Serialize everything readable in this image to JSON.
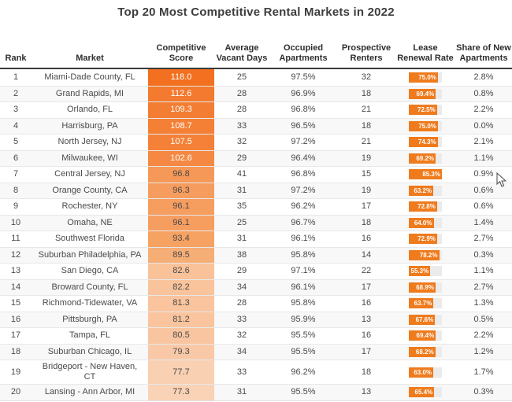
{
  "title": "Top 20 Most Competitive Rental Markets in 2022",
  "colors": {
    "accent_orange": "#ef7b1d",
    "bar_track": "#ebebeb",
    "header_border": "#3a3a3a",
    "alt_row_bg": "#f8f8f8"
  },
  "chart_data": {
    "type": "table",
    "title": "Top 20 Most Competitive Rental Markets in 2022",
    "columns": [
      "Rank",
      "Market",
      "Competitive Score",
      "Average Vacant Days",
      "Occupied Apartments",
      "Prospective Renters",
      "Lease Renewal Rate",
      "Share of New Apartments"
    ],
    "lease_renewal_bar": {
      "max_value": 85.3,
      "fill_color": "#ef7b1d",
      "track_color": "#ebebeb"
    },
    "score_color_scale": {
      "high": "#f2701f",
      "low": "#fad2b5"
    },
    "rows": [
      {
        "rank": "1",
        "market": "Miami-Dade County, FL",
        "score": "118.0",
        "score_bg": "#f2701f",
        "score_fg": "#ffffff",
        "avg_vacant_days": "25",
        "occupied": "97.5%",
        "prospective": "32",
        "lease_renewal": "75.0%",
        "lease_value": 75.0,
        "share_new": "2.8%"
      },
      {
        "rank": "2",
        "market": "Grand Rapids, MI",
        "score": "112.6",
        "score_bg": "#f37a2e",
        "score_fg": "#ffffff",
        "avg_vacant_days": "28",
        "occupied": "96.9%",
        "prospective": "18",
        "lease_renewal": "69.4%",
        "lease_value": 69.4,
        "share_new": "0.8%"
      },
      {
        "rank": "3",
        "market": "Orlando, FL",
        "score": "109.3",
        "score_bg": "#f37e33",
        "score_fg": "#ffffff",
        "avg_vacant_days": "28",
        "occupied": "96.8%",
        "prospective": "21",
        "lease_renewal": "72.5%",
        "lease_value": 72.5,
        "share_new": "2.2%"
      },
      {
        "rank": "4",
        "market": "Harrisburg, PA",
        "score": "108.7",
        "score_bg": "#f48035",
        "score_fg": "#ffffff",
        "avg_vacant_days": "33",
        "occupied": "96.5%",
        "prospective": "18",
        "lease_renewal": "75.0%",
        "lease_value": 75.0,
        "share_new": "0.0%"
      },
      {
        "rank": "5",
        "market": "North Jersey, NJ",
        "score": "107.5",
        "score_bg": "#f48137",
        "score_fg": "#ffffff",
        "avg_vacant_days": "32",
        "occupied": "97.2%",
        "prospective": "21",
        "lease_renewal": "74.3%",
        "lease_value": 74.3,
        "share_new": "2.1%"
      },
      {
        "rank": "6",
        "market": "Milwaukee, WI",
        "score": "102.6",
        "score_bg": "#f58842",
        "score_fg": "#ffffff",
        "avg_vacant_days": "29",
        "occupied": "96.4%",
        "prospective": "19",
        "lease_renewal": "69.2%",
        "lease_value": 69.2,
        "share_new": "1.1%"
      },
      {
        "rank": "7",
        "market": "Central Jersey, NJ",
        "score": "96.8",
        "score_bg": "#f69857",
        "score_fg": "#4a4a4a",
        "avg_vacant_days": "41",
        "occupied": "96.8%",
        "prospective": "15",
        "lease_renewal": "85.3%",
        "lease_value": 85.3,
        "share_new": "0.9%"
      },
      {
        "rank": "8",
        "market": "Orange County, CA",
        "score": "96.3",
        "score_bg": "#f69c5e",
        "score_fg": "#4a4a4a",
        "avg_vacant_days": "31",
        "occupied": "97.2%",
        "prospective": "19",
        "lease_renewal": "63.2%",
        "lease_value": 63.2,
        "share_new": "0.6%"
      },
      {
        "rank": "9",
        "market": "Rochester, NY",
        "score": "96.1",
        "score_bg": "#f69d60",
        "score_fg": "#4a4a4a",
        "avg_vacant_days": "35",
        "occupied": "96.2%",
        "prospective": "17",
        "lease_renewal": "72.8%",
        "lease_value": 72.8,
        "share_new": "0.6%"
      },
      {
        "rank": "10",
        "market": "Omaha, NE",
        "score": "96.1",
        "score_bg": "#f69d60",
        "score_fg": "#4a4a4a",
        "avg_vacant_days": "25",
        "occupied": "96.7%",
        "prospective": "18",
        "lease_renewal": "64.0%",
        "lease_value": 64.0,
        "share_new": "1.4%"
      },
      {
        "rank": "11",
        "market": "Southwest Florida",
        "score": "93.4",
        "score_bg": "#f6a263",
        "score_fg": "#4a4a4a",
        "avg_vacant_days": "31",
        "occupied": "96.1%",
        "prospective": "16",
        "lease_renewal": "72.9%",
        "lease_value": 72.9,
        "share_new": "2.7%"
      },
      {
        "rank": "12",
        "market": "Suburban Philadelphia, PA",
        "score": "89.5",
        "score_bg": "#f6ae77",
        "score_fg": "#4a4a4a",
        "avg_vacant_days": "38",
        "occupied": "95.8%",
        "prospective": "14",
        "lease_renewal": "78.2%",
        "lease_value": 78.2,
        "share_new": "0.3%"
      },
      {
        "rank": "13",
        "market": "San Diego, CA",
        "score": "82.6",
        "score_bg": "#f9c299",
        "score_fg": "#4a4a4a",
        "avg_vacant_days": "29",
        "occupied": "97.1%",
        "prospective": "22",
        "lease_renewal": "55.3%",
        "lease_value": 55.3,
        "share_new": "1.1%"
      },
      {
        "rank": "14",
        "market": "Broward County, FL",
        "score": "82.2",
        "score_bg": "#f9c39b",
        "score_fg": "#4a4a4a",
        "avg_vacant_days": "34",
        "occupied": "96.1%",
        "prospective": "17",
        "lease_renewal": "68.9%",
        "lease_value": 68.9,
        "share_new": "2.7%"
      },
      {
        "rank": "15",
        "market": "Richmond-Tidewater, VA",
        "score": "81.3",
        "score_bg": "#f9c49e",
        "score_fg": "#4a4a4a",
        "avg_vacant_days": "28",
        "occupied": "95.8%",
        "prospective": "16",
        "lease_renewal": "63.7%",
        "lease_value": 63.7,
        "share_new": "1.3%"
      },
      {
        "rank": "16",
        "market": "Pittsburgh, PA",
        "score": "81.2",
        "score_bg": "#f9c49e",
        "score_fg": "#4a4a4a",
        "avg_vacant_days": "33",
        "occupied": "95.9%",
        "prospective": "13",
        "lease_renewal": "67.6%",
        "lease_value": 67.6,
        "share_new": "0.5%"
      },
      {
        "rank": "17",
        "market": "Tampa, FL",
        "score": "80.5",
        "score_bg": "#f9c5a0",
        "score_fg": "#4a4a4a",
        "avg_vacant_days": "32",
        "occupied": "95.5%",
        "prospective": "16",
        "lease_renewal": "69.4%",
        "lease_value": 69.4,
        "share_new": "2.2%"
      },
      {
        "rank": "18",
        "market": "Suburban Chicago, IL",
        "score": "79.3",
        "score_bg": "#f9c9a7",
        "score_fg": "#4a4a4a",
        "avg_vacant_days": "34",
        "occupied": "95.5%",
        "prospective": "17",
        "lease_renewal": "68.2%",
        "lease_value": 68.2,
        "share_new": "1.2%"
      },
      {
        "rank": "19",
        "market": "Bridgeport - New Haven,\nCT",
        "score": "77.7",
        "score_bg": "#fad0b2",
        "score_fg": "#4a4a4a",
        "avg_vacant_days": "33",
        "occupied": "96.2%",
        "prospective": "18",
        "lease_renewal": "63.0%",
        "lease_value": 63.0,
        "share_new": "1.7%"
      },
      {
        "rank": "20",
        "market": "Lansing - Ann Arbor, MI",
        "score": "77.3",
        "score_bg": "#fad2b5",
        "score_fg": "#4a4a4a",
        "avg_vacant_days": "31",
        "occupied": "95.5%",
        "prospective": "13",
        "lease_renewal": "65.4%",
        "lease_value": 65.4,
        "share_new": "0.3%"
      }
    ]
  }
}
